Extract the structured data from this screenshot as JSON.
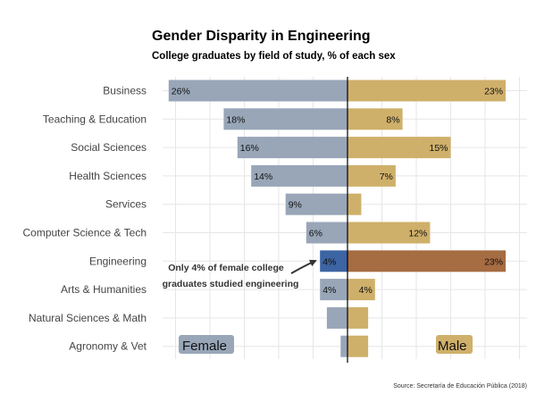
{
  "chart_data": {
    "type": "bar",
    "orientation": "diverging-horizontal",
    "title": "Gender Disparity in Engineering",
    "subtitle": "College graduates by field of study, % of each sex",
    "source": "Source: Secretaría de Educación Pública (2018)",
    "categories": [
      "Business",
      "Teaching & Education",
      "Social Sciences",
      "Health Sciences",
      "Services",
      "Computer Science & Tech",
      "Engineering",
      "Arts & Humanities",
      "Natural Sciences & Math",
      "Agronomy & Vet"
    ],
    "series": [
      {
        "name": "Female",
        "values": [
          26,
          18,
          16,
          14,
          9,
          6,
          4,
          4,
          3,
          1
        ],
        "labels": [
          "26%",
          "18%",
          "16%",
          "14%",
          "9%",
          "6%",
          "4%",
          "4%",
          "",
          ""
        ],
        "color": "#98a6b8",
        "highlight_color": "#3d64a3"
      },
      {
        "name": "Male",
        "values": [
          23,
          8,
          15,
          7,
          2,
          12,
          23,
          4,
          3,
          3
        ],
        "labels": [
          "23%",
          "8%",
          "15%",
          "7%",
          "",
          "12%",
          "23%",
          "4%",
          "",
          ""
        ],
        "color": "#cfb06a",
        "highlight_color": "#a66c42"
      }
    ],
    "highlight_category": "Engineering",
    "xlim": [
      -26,
      23
    ],
    "grid": true,
    "legend_placement": "bottom-corners",
    "annotation": {
      "lines": [
        "Only 4% of female college",
        "graduates studied engineering"
      ]
    }
  }
}
